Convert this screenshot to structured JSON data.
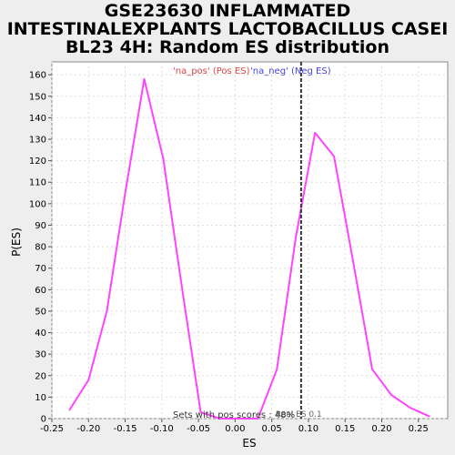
{
  "title_lines": [
    "GSE23630 INFLAMMATED",
    "INTESTINALEXPLANTS LACTOBACILLUS CASEI",
    "BL23 4H: Random ES distribution"
  ],
  "chart_data": {
    "type": "line",
    "xlabel": "ES",
    "ylabel": "P(ES)",
    "xlim": [
      -0.25,
      0.29
    ],
    "ylim": [
      0,
      166
    ],
    "x_ticks": [
      "-0.25",
      "-0.20",
      "-0.15",
      "-0.10",
      "-0.05",
      "0.00",
      "0.05",
      "0.10",
      "0.15",
      "0.20",
      "0.25"
    ],
    "y_ticks": [
      "0",
      "10",
      "20",
      "30",
      "40",
      "50",
      "60",
      "70",
      "80",
      "90",
      "100",
      "110",
      "120",
      "130",
      "140",
      "150",
      "160"
    ],
    "grid": true,
    "series": [
      {
        "color": "#ff44ff",
        "points": [
          [
            -0.226,
            4
          ],
          [
            -0.2,
            18
          ],
          [
            -0.175,
            50
          ],
          [
            -0.15,
            105
          ],
          [
            -0.124,
            158
          ],
          [
            -0.098,
            121
          ],
          [
            -0.073,
            62
          ],
          [
            -0.047,
            3
          ],
          [
            -0.021,
            0
          ],
          [
            0.005,
            0
          ],
          [
            0.031,
            0
          ],
          [
            0.057,
            23
          ],
          [
            0.083,
            85
          ],
          [
            0.109,
            133
          ],
          [
            0.135,
            122
          ],
          [
            0.161,
            73
          ],
          [
            0.187,
            23
          ],
          [
            0.213,
            11
          ],
          [
            0.239,
            5
          ],
          [
            0.265,
            1
          ]
        ]
      }
    ],
    "marker_line": {
      "x": 0.09,
      "label": "Real ES 0.1"
    },
    "legend": [
      {
        "label": "'na_pos' (Pos ES)",
        "color": "#dd4444"
      },
      {
        "label": "'na_neg' (Neg ES)",
        "color": "#4444dd"
      }
    ],
    "annotation": "Sets with pos scores : 48%"
  }
}
